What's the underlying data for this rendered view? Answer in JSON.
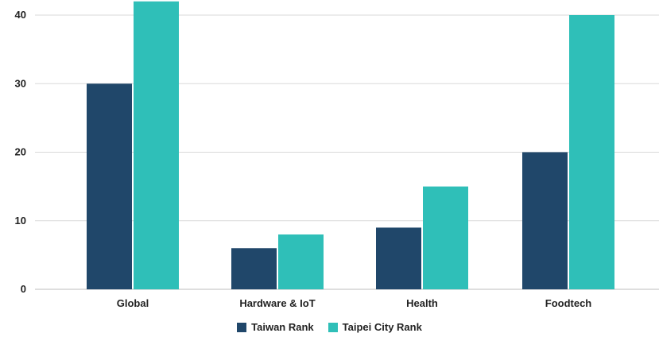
{
  "chart_data": {
    "type": "bar",
    "title": "",
    "xlabel": "",
    "ylabel": "",
    "categories": [
      "Global",
      "Hardware & IoT",
      "Health",
      "Foodtech"
    ],
    "series": [
      {
        "name": "Taiwan Rank",
        "color": "#20476A",
        "values": [
          30,
          6,
          9,
          20
        ]
      },
      {
        "name": "Taipei City Rank",
        "color": "#2FBFB8",
        "values": [
          42,
          8,
          15,
          40
        ]
      }
    ],
    "ylim": [
      0,
      42
    ],
    "yticks": [
      0,
      10,
      20,
      30,
      40
    ],
    "grid": true,
    "legend_position": "bottom-center"
  }
}
